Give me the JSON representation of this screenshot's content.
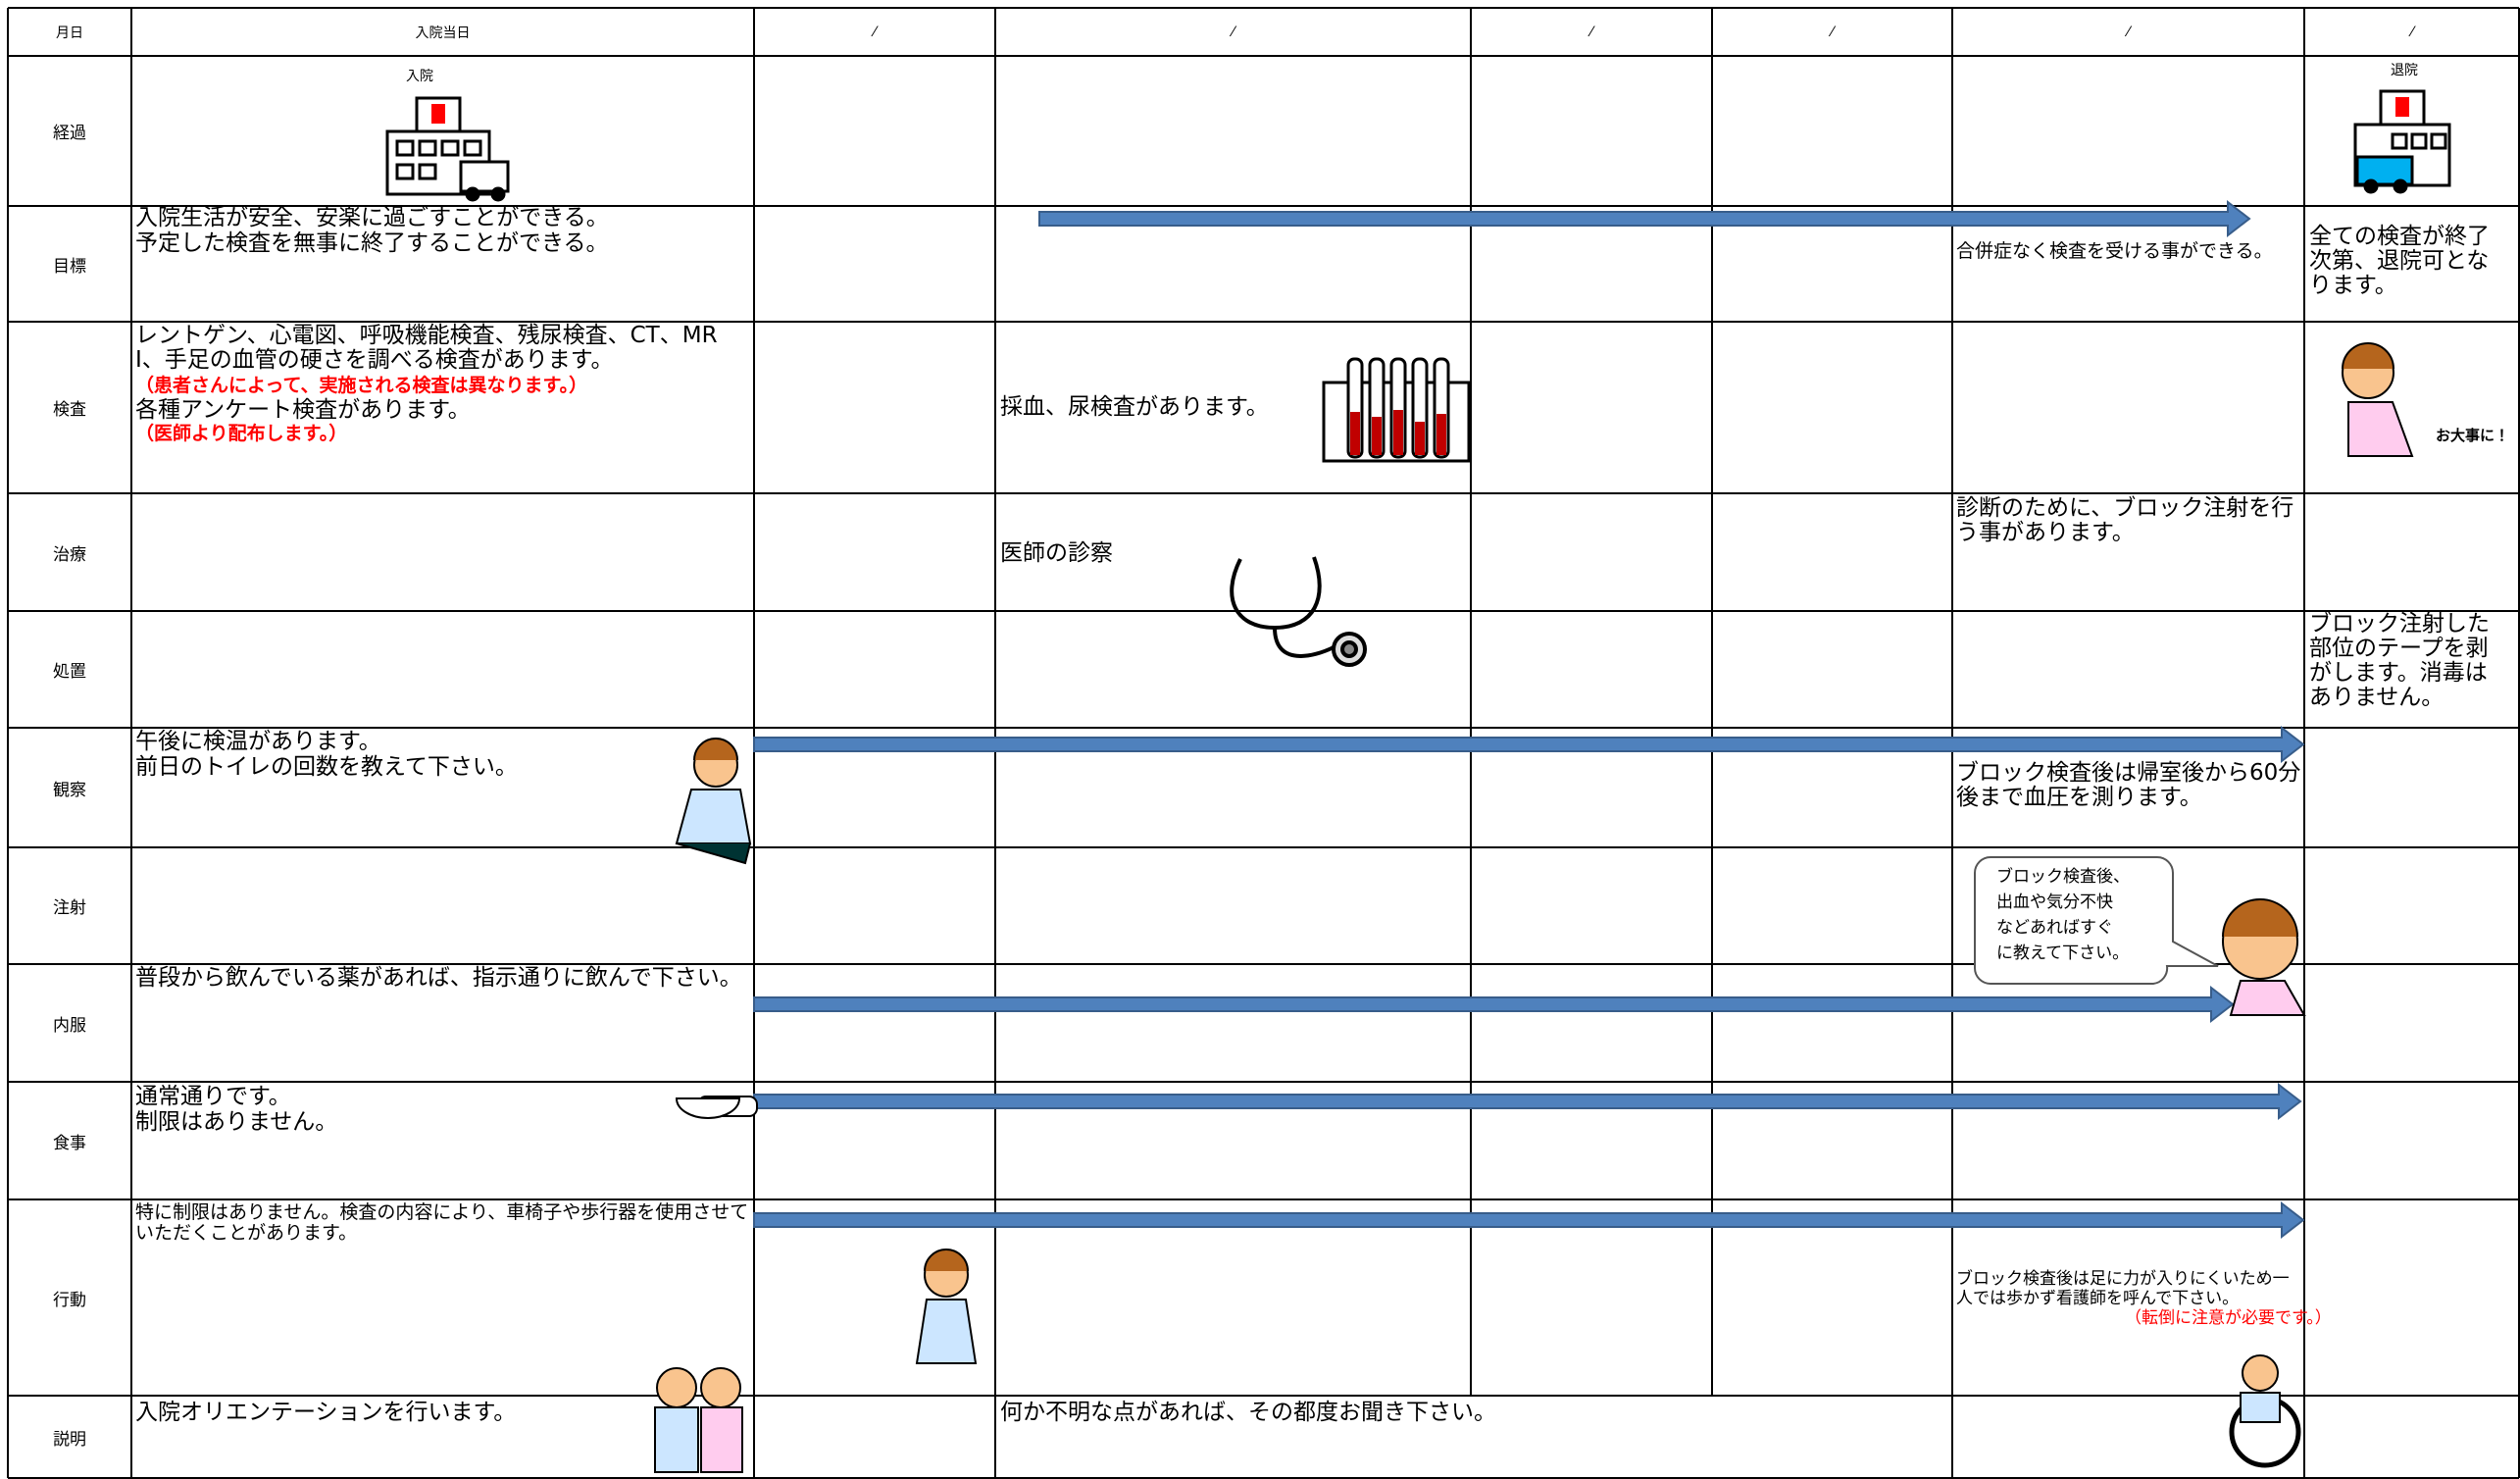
{
  "header": {
    "date_label": "月日",
    "day_labels": [
      "入院当日",
      "⁄",
      "⁄",
      "⁄",
      "⁄",
      "⁄",
      "⁄"
    ]
  },
  "rows": [
    {
      "label": "経過",
      "admission_icon": "入院",
      "discharge_icon": "退院"
    },
    {
      "label": "目標",
      "day1": [
        "入院生活が安全、安楽に過ごすことができる。",
        "予定した検査を無事に終了することができる。"
      ],
      "day6": "合併症なく検査を受ける事ができる。",
      "day7": "全ての検査が終了次第、退院可となります。"
    },
    {
      "label": "検査",
      "day1": [
        "レントゲン、心電図、呼吸機能検査、残尿検査、CT、MRI、手足の血管の硬さを調べる検査があります。",
        "（患者さんによって、実施される検査は異なります。）",
        "各種アンケート検査があります。",
        "（医師より配布します。）"
      ],
      "day3": "採血、尿検査があります。",
      "day7": "お大事に！"
    },
    {
      "label": "治療",
      "day3": "医師の診察",
      "day6": "診断のために、ブロック注射を行う事があります。"
    },
    {
      "label": "処置",
      "day7": "ブロック注射した部位のテープを剥がします。消毒はありません。"
    },
    {
      "label": "観察",
      "day1": [
        "午後に検温があります。",
        "前日のトイレの回数を教えて下さい。"
      ],
      "day6": "ブロック検査後は帰室後から60分後まで血圧を測ります。"
    },
    {
      "label": "注射",
      "bubble": [
        "ブロック検査後、",
        "出血や気分不快",
        "などあればすぐ",
        "に教えて下さい。"
      ]
    },
    {
      "label": "内服",
      "day1": "普段から飲んでいる薬があれば、指示通りに飲んで下さい。"
    },
    {
      "label": "食事",
      "day1": [
        "通常通りです。",
        "制限はありません。"
      ]
    },
    {
      "label": "行動",
      "day1": "特に制限はありません。検査の内容により、車椅子や歩行器を使用させていただくことがあります。",
      "day6": [
        "ブロック検査後は足に力が入りにくいため一人では歩かず看護師を呼んで下さい。",
        "（転倒に注意が必要です。）"
      ]
    },
    {
      "label": "説明",
      "day1": "入院オリエンテーションを行います。",
      "day3": "何か不明な点があれば、その都度お聞き下さい。"
    }
  ]
}
